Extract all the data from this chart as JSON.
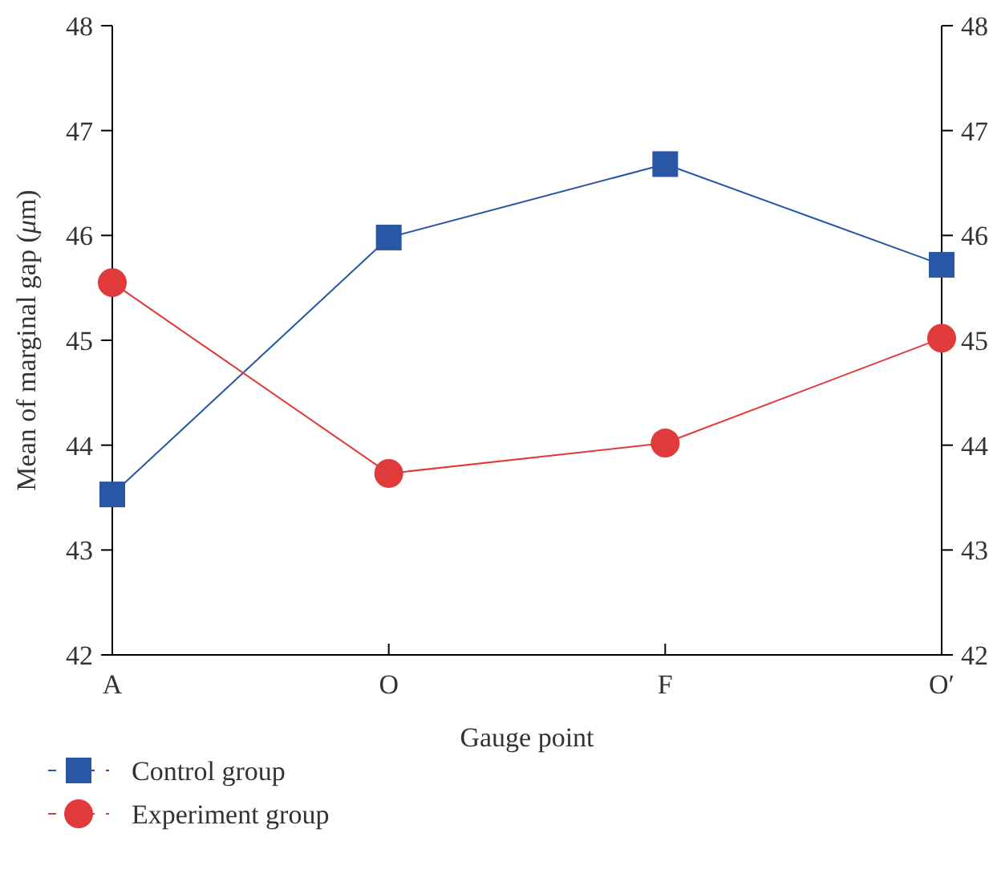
{
  "chart_data": {
    "type": "line",
    "xlabel": "Gauge point",
    "ylabel": "Mean of marginal gap (μm)",
    "categories": [
      "A",
      "O",
      "F",
      "O′"
    ],
    "series": [
      {
        "name": "Control group",
        "color": "#2a56a6",
        "values": [
          43.53,
          45.98,
          46.68,
          45.72
        ],
        "marker": "square"
      },
      {
        "name": "Experiment group",
        "color": "#e03a3a",
        "values": [
          45.55,
          43.73,
          44.02,
          45.02
        ],
        "marker": "circle"
      }
    ],
    "ylim": [
      42,
      48
    ],
    "yticks": [
      42,
      43,
      44,
      45,
      46,
      47,
      48
    ],
    "y2lim": [
      42,
      48
    ],
    "y2ticks": [
      42,
      43,
      44,
      45,
      46,
      47,
      48
    ],
    "grid": false,
    "legend": "bottom left",
    "line_style": "solid"
  }
}
